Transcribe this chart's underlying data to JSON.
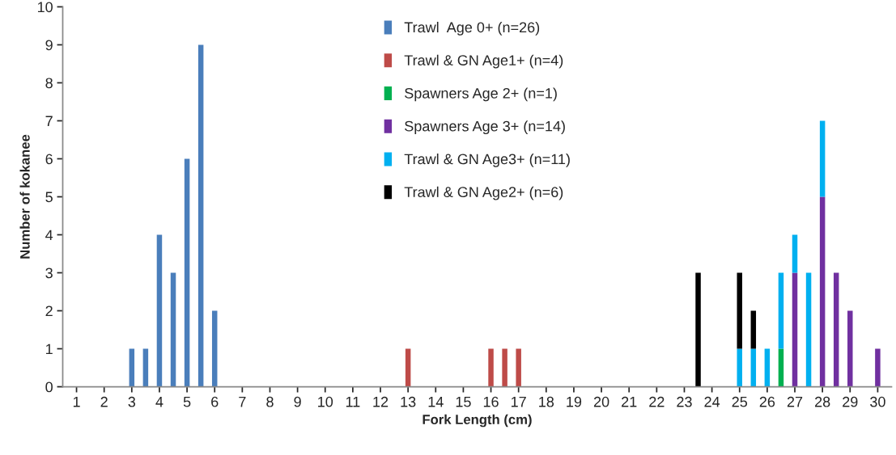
{
  "chart_data": {
    "type": "bar",
    "stacked": true,
    "xlabel": "Fork Length (cm)",
    "ylabel": "Number of kokanee",
    "categories": [
      "1",
      null,
      "2",
      null,
      "3",
      null,
      "4",
      null,
      "5",
      null,
      "6",
      null,
      "7",
      null,
      "8",
      null,
      "9",
      null,
      "10",
      null,
      "11",
      null,
      "12",
      null,
      "13",
      null,
      "14",
      null,
      "15",
      null,
      "16",
      null,
      "17",
      null,
      "18",
      null,
      "19",
      null,
      "20",
      null,
      "21",
      null,
      "22",
      null,
      "23",
      null,
      "24",
      null,
      "25",
      null,
      "26",
      null,
      "27",
      null,
      "28",
      null,
      "29",
      null,
      "30"
    ],
    "series": [
      {
        "name": "Trawl  Age 0+ (n=26)",
        "color": "#4a7ebb",
        "values": [
          null,
          null,
          null,
          null,
          1,
          1,
          4,
          3,
          6,
          9,
          2,
          null,
          null,
          null,
          null,
          null,
          null,
          null,
          null,
          null,
          null,
          null,
          null,
          null,
          null,
          null,
          null,
          null,
          null,
          null,
          null,
          null,
          null,
          null,
          null,
          null,
          null,
          null,
          null,
          null,
          null,
          null,
          null,
          null,
          null,
          null,
          null,
          null,
          null,
          null,
          null,
          null,
          null,
          null,
          null,
          null,
          null,
          null,
          null
        ]
      },
      {
        "name": "Trawl & GN Age1+ (n=4)",
        "color": "#be4b48",
        "values": [
          null,
          null,
          null,
          null,
          null,
          null,
          null,
          null,
          null,
          null,
          null,
          null,
          null,
          null,
          null,
          null,
          null,
          null,
          null,
          null,
          null,
          null,
          null,
          null,
          1,
          null,
          null,
          null,
          null,
          null,
          1,
          1,
          1,
          null,
          null,
          null,
          null,
          null,
          null,
          null,
          null,
          null,
          null,
          null,
          null,
          null,
          null,
          null,
          null,
          null,
          null,
          null,
          null,
          null,
          null,
          null,
          null,
          null,
          null
        ]
      },
      {
        "name": "Spawners Age 2+ (n=1)",
        "color": "#00b050",
        "values": [
          null,
          null,
          null,
          null,
          null,
          null,
          null,
          null,
          null,
          null,
          null,
          null,
          null,
          null,
          null,
          null,
          null,
          null,
          null,
          null,
          null,
          null,
          null,
          null,
          null,
          null,
          null,
          null,
          null,
          null,
          null,
          null,
          null,
          null,
          null,
          null,
          null,
          null,
          null,
          null,
          null,
          null,
          null,
          null,
          null,
          null,
          null,
          null,
          null,
          null,
          null,
          1,
          null,
          null,
          null,
          null,
          null,
          null,
          null
        ]
      },
      {
        "name": "Spawners Age 3+ (n=14)",
        "color": "#7030a0",
        "values": [
          null,
          null,
          null,
          null,
          null,
          null,
          null,
          null,
          null,
          null,
          null,
          null,
          null,
          null,
          null,
          null,
          null,
          null,
          null,
          null,
          null,
          null,
          null,
          null,
          null,
          null,
          null,
          null,
          null,
          null,
          null,
          null,
          null,
          null,
          null,
          null,
          null,
          null,
          null,
          null,
          null,
          null,
          null,
          null,
          null,
          null,
          null,
          null,
          null,
          null,
          null,
          null,
          3,
          null,
          5,
          3,
          2,
          null,
          1
        ]
      },
      {
        "name": "Trawl & GN Age3+ (n=11)",
        "color": "#00b0f0",
        "values": [
          null,
          null,
          null,
          null,
          null,
          null,
          null,
          null,
          null,
          null,
          null,
          null,
          null,
          null,
          null,
          null,
          null,
          null,
          null,
          null,
          null,
          null,
          null,
          null,
          null,
          null,
          null,
          null,
          null,
          null,
          null,
          null,
          null,
          null,
          null,
          null,
          null,
          null,
          null,
          null,
          null,
          null,
          null,
          null,
          null,
          null,
          null,
          null,
          1,
          1,
          1,
          2,
          1,
          3,
          2,
          null,
          null,
          null,
          null
        ]
      },
      {
        "name": "Trawl & GN Age2+ (n=6)",
        "color": "#000000",
        "values": [
          null,
          null,
          null,
          null,
          null,
          null,
          null,
          null,
          null,
          null,
          null,
          null,
          null,
          null,
          null,
          null,
          null,
          null,
          null,
          null,
          null,
          null,
          null,
          null,
          null,
          null,
          null,
          null,
          null,
          null,
          null,
          null,
          null,
          null,
          null,
          null,
          null,
          null,
          null,
          null,
          null,
          null,
          null,
          null,
          null,
          3,
          null,
          null,
          2,
          1,
          null,
          null,
          null,
          null,
          null,
          null,
          null,
          null,
          null
        ]
      }
    ],
    "ylim": [
      0,
      10
    ],
    "yticks": [
      0,
      1,
      2,
      3,
      4,
      5,
      6,
      7,
      8,
      9,
      10
    ],
    "grid": false,
    "legend": "top"
  }
}
